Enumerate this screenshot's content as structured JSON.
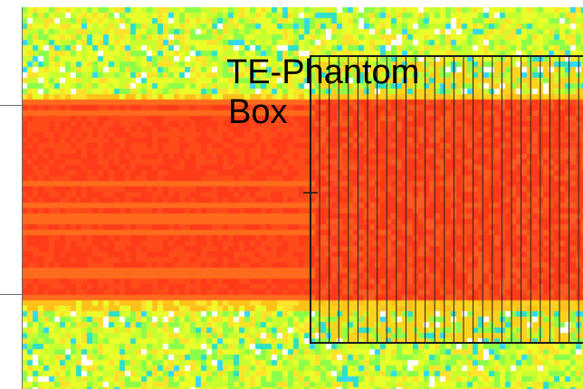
{
  "label": {
    "line1": "TE-Phantom",
    "line2": "Box"
  },
  "colors": {
    "beam_core": "#ff3b1a",
    "beam_alt": "#ff6a1c",
    "background_yellow": "#e9ff2a",
    "background_green": "#8cff4a",
    "background_cyan": "#33d8ff",
    "box_outline": "#1a1a1a"
  }
}
